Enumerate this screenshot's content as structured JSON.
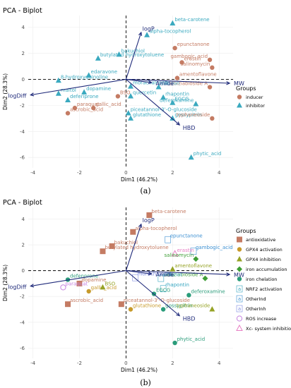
{
  "chart_data": [
    {
      "type": "scatter",
      "panel_label": "(a)",
      "title": "PCA - Biplot",
      "xlabel": "Dim1 (46.2%)",
      "ylabel": "Dim2 (28.3%)",
      "xlim": [
        -4.2,
        4.6
      ],
      "ylim": [
        -6.8,
        4.9
      ],
      "xticks": [
        -4,
        -2,
        0,
        2,
        4
      ],
      "yticks": [
        -6,
        -4,
        -2,
        0,
        2,
        4
      ],
      "legend": {
        "title": "Groups",
        "position": "right",
        "entries": [
          {
            "name": "inducer",
            "shape": "circle",
            "color": "#c47b63"
          },
          {
            "name": "inhibitor",
            "shape": "triangle",
            "color": "#3aa9bf"
          }
        ]
      },
      "arrows": [
        {
          "label": "logP",
          "x": 0.65,
          "y": 3.6
        },
        {
          "label": "MW",
          "x": 4.45,
          "y": -0.3
        },
        {
          "label": "HBD",
          "x": 2.3,
          "y": -3.5
        },
        {
          "label": "Amide",
          "x": 1.1,
          "y": -0.25
        },
        {
          "label": "logDiff",
          "x": -4.1,
          "y": -1.2
        }
      ],
      "points": [
        {
          "label": "beta-carotene",
          "x": 2.0,
          "y": 4.3,
          "group": "inhibitor"
        },
        {
          "label": "alpha-tocopherol",
          "x": 0.9,
          "y": 3.4,
          "group": "inhibitor"
        },
        {
          "label": "epunctanone",
          "x": 2.1,
          "y": 2.4,
          "group": "inducer"
        },
        {
          "label": "gambogic_acid",
          "x": 3.6,
          "y": 1.5,
          "group": "inducer"
        },
        {
          "label": "erastin",
          "x": 2.4,
          "y": 1.3,
          "group": "inducer"
        },
        {
          "label": "salinomycin",
          "x": 3.7,
          "y": 0.9,
          "group": "inducer"
        },
        {
          "label": "butylated hydroxytoluene",
          "x": -1.2,
          "y": 1.6,
          "group": "inhibitor"
        },
        {
          "label": "bakuchiol",
          "x": -0.3,
          "y": 1.9,
          "group": "inhibitor"
        },
        {
          "label": "edaravone",
          "x": -1.6,
          "y": 0.3,
          "group": "inhibitor"
        },
        {
          "label": "8-hydroxyquinoline",
          "x": -2.9,
          "y": -0.1,
          "group": "inhibitor"
        },
        {
          "label": "amentoflavone",
          "x": 2.2,
          "y": 0.1,
          "group": "inducer"
        },
        {
          "label": "albiziabioside A",
          "x": 3.6,
          "y": -0.6,
          "group": "inducer"
        },
        {
          "label": "maltol",
          "x": -2.9,
          "y": -1.1,
          "group": "inhibitor"
        },
        {
          "label": "dopamine",
          "x": -1.8,
          "y": -1.0,
          "group": "inhibitor"
        },
        {
          "label": "deferiprone",
          "x": -2.5,
          "y": -1.6,
          "group": "inhibitor"
        },
        {
          "label": "paraquat",
          "x": -2.2,
          "y": -2.2,
          "group": "inducer"
        },
        {
          "label": "gallic_acid",
          "x": -1.4,
          "y": -2.2,
          "group": "inducer"
        },
        {
          "label": "ascrobic_acid",
          "x": -2.5,
          "y": -2.6,
          "group": "inducer"
        },
        {
          "label": "morachalcone",
          "x": 0.2,
          "y": -0.55,
          "group": "inhibitor"
        },
        {
          "label": "silibinin",
          "x": 1.4,
          "y": -0.6,
          "group": "inhibitor"
        },
        {
          "label": "BSO",
          "x": -0.35,
          "y": -1.3,
          "group": "inducer"
        },
        {
          "label": "quercetin",
          "x": 0.2,
          "y": -1.3,
          "group": "inhibitor"
        },
        {
          "label": "rhapontin",
          "x": 1.6,
          "y": -1.4,
          "group": "inhibitor"
        },
        {
          "label": "EGCG",
          "x": 2.0,
          "y": -1.8,
          "group": "inhibitor"
        },
        {
          "label": "deferoxamine",
          "x": 3.0,
          "y": -1.9,
          "group": "inhibitor"
        },
        {
          "label": "piceatannol-3'-O-glucoside",
          "x": 0.1,
          "y": -2.6,
          "group": "inhibitor"
        },
        {
          "label": "glutathione",
          "x": 0.2,
          "y": -3.0,
          "group": "inhibitor"
        },
        {
          "label": "gossypitrin",
          "x": 2.0,
          "y": -3.0,
          "group": "inhibitor"
        },
        {
          "label": "typhaneoside",
          "x": 3.7,
          "y": -3.0,
          "group": "inducer"
        },
        {
          "label": "phytic_acid",
          "x": 2.8,
          "y": -6.0,
          "group": "inhibitor"
        }
      ]
    },
    {
      "type": "scatter",
      "panel_label": "(b)",
      "title": "PCA - Biplot",
      "xlabel": "Dim1 (46.2%)",
      "ylabel": "Dim2 (28.3%)",
      "xlim": [
        -4.2,
        4.6
      ],
      "ylim": [
        -6.8,
        4.9
      ],
      "xticks": [
        -4,
        -2,
        0,
        2,
        4
      ],
      "yticks": [
        -6,
        -4,
        -2,
        0,
        2,
        4
      ],
      "legend": {
        "title": "Groups",
        "position": "right",
        "entries": [
          {
            "name": "antioxidative",
            "shape": "square",
            "color": "#c47b63"
          },
          {
            "name": "GPX4 activation",
            "shape": "circle",
            "color": "#c79a2a"
          },
          {
            "name": "GPX4 inhibition",
            "shape": "triangle",
            "color": "#96a326"
          },
          {
            "name": "iron accumulation",
            "shape": "diamond",
            "color": "#3e9e36"
          },
          {
            "name": "iron chelation",
            "shape": "circle",
            "color": "#2a9c7a"
          },
          {
            "name": "NRF2 activation",
            "shape": "letter",
            "color": "#37a6c0"
          },
          {
            "name": "OtherInd",
            "shape": "letter",
            "color": "#3b8fd1"
          },
          {
            "name": "OtherInh",
            "shape": "letter",
            "color": "#7f8de0"
          },
          {
            "name": "ROS increase",
            "shape": "open-circle",
            "color": "#c583e0"
          },
          {
            "name": "Xc- system inhibition",
            "shape": "open-triangle",
            "color": "#e77fc4"
          }
        ]
      },
      "arrows": [
        {
          "label": "logP",
          "x": 0.65,
          "y": 3.6
        },
        {
          "label": "MW",
          "x": 4.45,
          "y": -0.3
        },
        {
          "label": "HBD",
          "x": 2.3,
          "y": -3.5
        },
        {
          "label": "Amide",
          "x": 1.1,
          "y": -0.25
        },
        {
          "label": "logDiff",
          "x": -4.1,
          "y": -1.2
        }
      ],
      "points": [
        {
          "label": "beta-carotene",
          "x": 1.0,
          "y": 4.3,
          "group": "antioxidative"
        },
        {
          "label": "alpha-tocopherol",
          "x": 0.3,
          "y": 3.0,
          "group": "antioxidative"
        },
        {
          "label": "epunctanone",
          "x": 1.8,
          "y": 2.4,
          "group": "OtherInd"
        },
        {
          "label": "gambogic_acid",
          "x": 2.9,
          "y": 1.5,
          "group": "OtherInd"
        },
        {
          "label": "erastin",
          "x": 2.1,
          "y": 1.3,
          "group": "Xc- system inhibition"
        },
        {
          "label": "salinomycin",
          "x": 3.0,
          "y": 0.9,
          "group": "iron accumulation"
        },
        {
          "label": "butylated hydroxytoluene",
          "x": -1.0,
          "y": 1.5,
          "group": "antioxidative"
        },
        {
          "label": "bakuchiol",
          "x": -0.6,
          "y": 1.9,
          "group": "antioxidative"
        },
        {
          "label": "amentoflavone",
          "x": 2.0,
          "y": 0.1,
          "group": "GPX4 inhibition"
        },
        {
          "label": "albiziabioside A",
          "x": 3.4,
          "y": -0.6,
          "group": "iron accumulation"
        },
        {
          "label": "defenprone",
          "x": -2.5,
          "y": -0.7,
          "group": "iron chelation"
        },
        {
          "label": "dopamine",
          "x": -2.0,
          "y": -1.0,
          "group": "antioxidative"
        },
        {
          "label": "paraquat",
          "x": -2.7,
          "y": -1.3,
          "group": "ROS increase"
        },
        {
          "label": "gallic_acid",
          "x": -1.6,
          "y": -1.6,
          "group": "GPX4 activation"
        },
        {
          "label": "BSO",
          "x": -1.0,
          "y": -1.3,
          "group": "GPX4 inhibition"
        },
        {
          "label": "ascrobic_acid",
          "x": -2.5,
          "y": -2.6,
          "group": "antioxidative"
        },
        {
          "label": "piceatannol-3'-O-glucoside",
          "x": -0.2,
          "y": -2.6,
          "group": "antioxidative"
        },
        {
          "label": "glutathione",
          "x": 0.2,
          "y": -3.0,
          "group": "GPX4 activation"
        },
        {
          "label": "morachalcone",
          "x": 0.4,
          "y": -0.55,
          "group": "OtherInh"
        },
        {
          "label": "silibinin",
          "x": 1.5,
          "y": -0.6,
          "group": "NRF2 activation"
        },
        {
          "label": "rhapontin",
          "x": 1.6,
          "y": -1.4,
          "group": "NRF2 activation"
        },
        {
          "label": "EGCG",
          "x": 1.2,
          "y": -1.8,
          "group": "iron chelation"
        },
        {
          "label": "deferoxamine",
          "x": 2.7,
          "y": -1.9,
          "group": "iron chelation"
        },
        {
          "label": "gossypitrin",
          "x": 1.6,
          "y": -3.0,
          "group": "iron chelation"
        },
        {
          "label": "typhaneoside",
          "x": 3.7,
          "y": -3.0,
          "group": "GPX4 inhibition"
        },
        {
          "label": "phytic_acid",
          "x": 2.1,
          "y": -5.6,
          "group": "iron chelation"
        }
      ]
    }
  ]
}
